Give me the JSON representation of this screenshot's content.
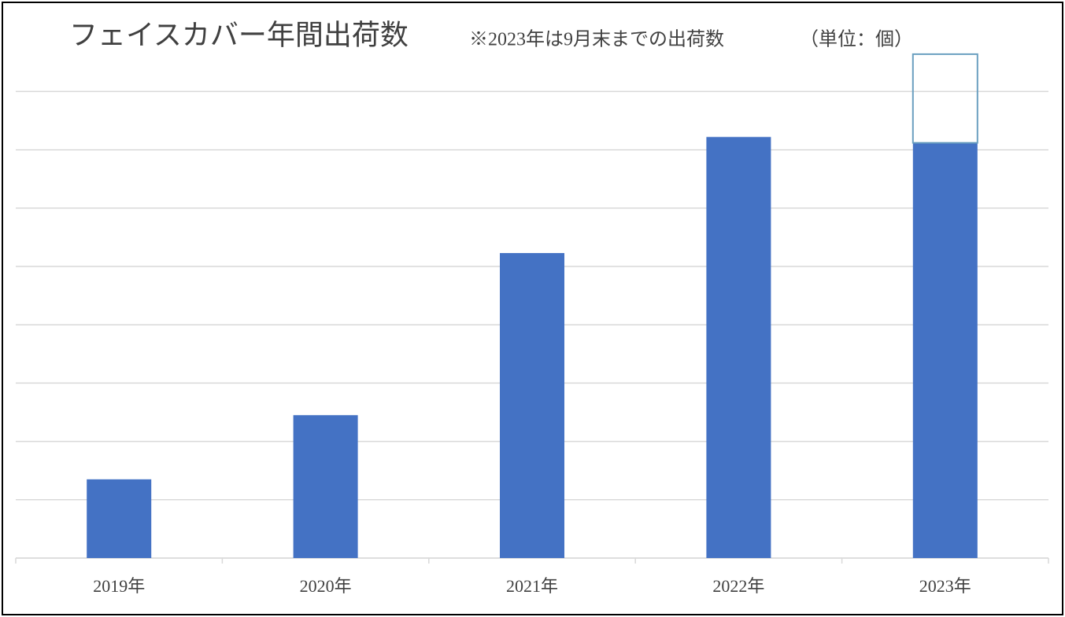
{
  "chart_data": {
    "type": "stacked_bar",
    "title": "フェイスカバー年間出荷数",
    "subtitle": "※2023年は9月末までの出荷数",
    "unit_note": "（単位：個）",
    "categories": [
      "2019年",
      "2020年",
      "2021年",
      "2022年",
      "2023年"
    ],
    "series": [
      {
        "color": "#4472c4",
        "outline": false,
        "values": [
          1.35,
          2.45,
          5.23,
          7.22,
          7.12
        ]
      },
      {
        "color": "#6a9fc0",
        "outline": true,
        "values": [
          null,
          null,
          null,
          null,
          1.52
        ]
      }
    ],
    "ylim": [
      0,
      9
    ],
    "yticks": [
      0,
      1,
      2,
      3,
      4,
      5,
      6,
      7,
      8
    ],
    "grid": true,
    "show_tick_labels": false
  }
}
